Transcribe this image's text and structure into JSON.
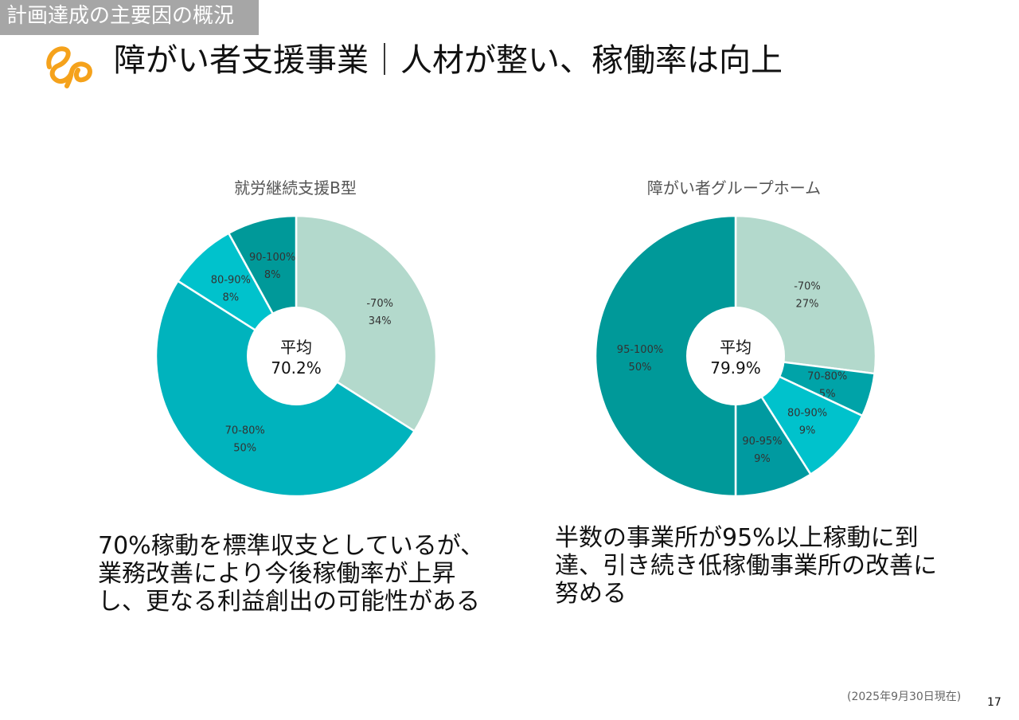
{
  "header": {
    "section": "計画達成の主要因の概況",
    "title": "障がい者支援事業｜人材が整い、稼働率は向上"
  },
  "chart_data": [
    {
      "type": "pie",
      "title": "就労継続支援B型",
      "center_label": "平均",
      "center_value": "70.2%",
      "slices": [
        {
          "label": "-70%",
          "value": 34,
          "display": "34%",
          "color": "#b3d9cc"
        },
        {
          "label": "70-80%",
          "value": 50,
          "display": "50%",
          "color": "#00b3bd"
        },
        {
          "label": "80-90%",
          "value": 8,
          "display": "8%",
          "color": "#00c2cc"
        },
        {
          "label": "90-100%",
          "value": 8,
          "display": "8%",
          "color": "#009999"
        }
      ]
    },
    {
      "type": "pie",
      "title": "障がい者グループホーム",
      "center_label": "平均",
      "center_value": "79.9%",
      "slices": [
        {
          "label": "-70%",
          "value": 27,
          "display": "27%",
          "color": "#b3d9cc"
        },
        {
          "label": "70-80%",
          "value": 5,
          "display": "5%",
          "color": "#00a3a8"
        },
        {
          "label": "80-90%",
          "value": 9,
          "display": "9%",
          "color": "#00c2cc"
        },
        {
          "label": "90-95%",
          "value": 9,
          "display": "9%",
          "color": "#009aa0"
        },
        {
          "label": "95-100%",
          "value": 50,
          "display": "50%",
          "color": "#009999"
        }
      ]
    }
  ],
  "captions": {
    "left": "70%稼動を標準収支としているが、\n業務改善により今後稼働率が上昇\nし、更なる利益創出の可能性がある",
    "right": "半数の事業所が95%以上稼動に到\n達、引き続き低稼働事業所の改善に\n努める"
  },
  "footer": {
    "note": "(2025年9月30日現在)",
    "page": "17"
  },
  "colors": {
    "logo": "#f5a21b",
    "section_bg": "#a6a6a6"
  }
}
